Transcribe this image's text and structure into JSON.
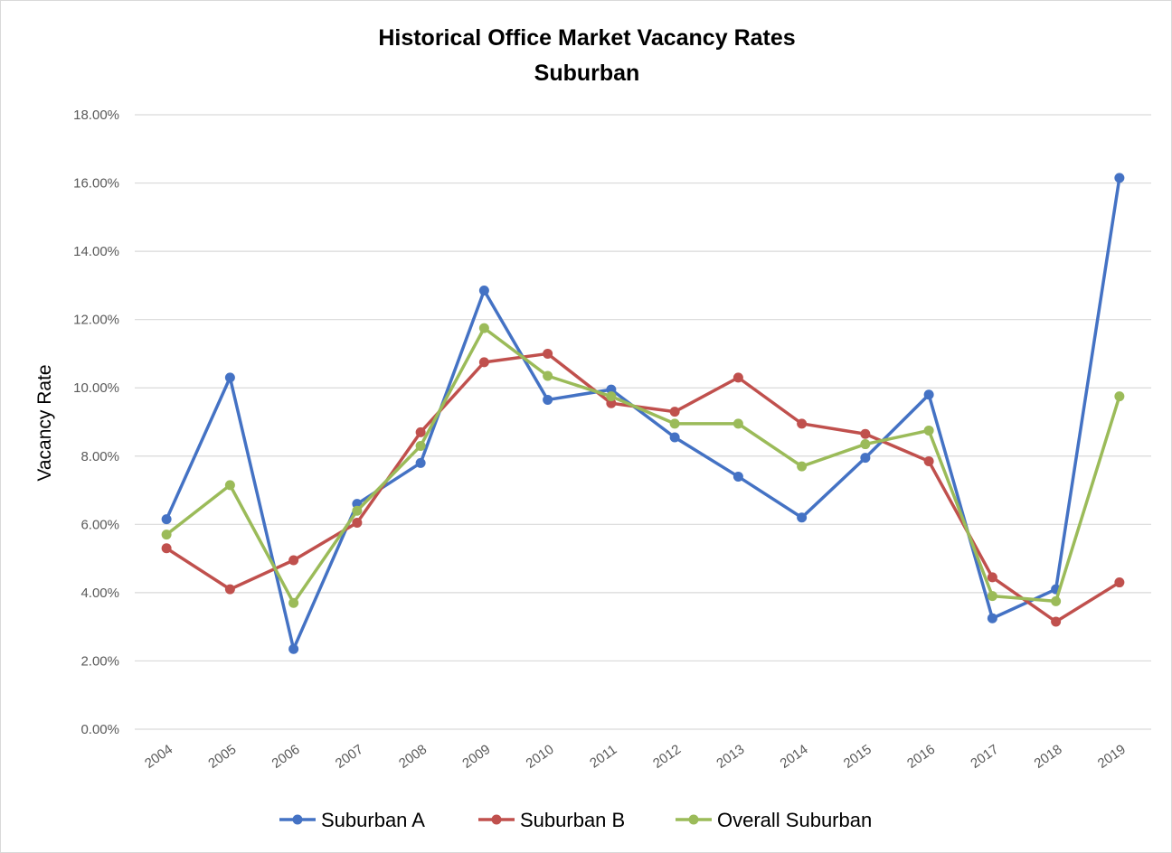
{
  "chart_data": {
    "type": "line",
    "title": "Historical Office Market Vacancy Rates",
    "subtitle": "Suburban",
    "xlabel": "",
    "ylabel": "Vacancy Rate",
    "ylim": [
      0,
      18
    ],
    "yticks": [
      "0.00%",
      "2.00%",
      "4.00%",
      "6.00%",
      "8.00%",
      "10.00%",
      "12.00%",
      "14.00%",
      "16.00%",
      "18.00%"
    ],
    "ytick_values": [
      0,
      2,
      4,
      6,
      8,
      10,
      12,
      14,
      16,
      18
    ],
    "grid": true,
    "legend_position": "bottom",
    "categories": [
      "2004",
      "2005",
      "2006",
      "2007",
      "2008",
      "2009",
      "2010",
      "2011",
      "2012",
      "2013",
      "2014",
      "2015",
      "2016",
      "2017",
      "2018",
      "2019"
    ],
    "series": [
      {
        "name": "Suburban A",
        "color": "#4472c4",
        "values": [
          6.15,
          10.3,
          2.35,
          6.6,
          7.8,
          12.85,
          9.65,
          9.95,
          8.55,
          7.4,
          6.2,
          7.95,
          9.8,
          3.25,
          4.1,
          16.15
        ]
      },
      {
        "name": "Suburban B",
        "color": "#c0504d",
        "values": [
          5.3,
          4.1,
          4.95,
          6.05,
          8.7,
          10.75,
          11.0,
          9.55,
          9.3,
          10.3,
          8.95,
          8.65,
          7.85,
          4.45,
          3.15,
          4.3
        ]
      },
      {
        "name": "Overall Suburban",
        "color": "#9bbb59",
        "values": [
          5.7,
          7.15,
          3.7,
          6.4,
          8.3,
          11.75,
          10.35,
          9.75,
          8.95,
          8.95,
          7.7,
          8.35,
          8.75,
          3.9,
          3.75,
          9.75
        ]
      }
    ]
  }
}
